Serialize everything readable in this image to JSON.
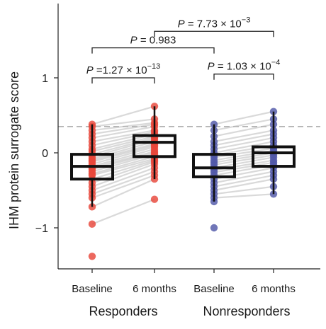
{
  "chart_data": {
    "type": "box",
    "ylabel": "IHM protein surrogate score",
    "ylim": [
      -1.5,
      1.85
    ],
    "yticks": [
      -1,
      0,
      1
    ],
    "threshold_line": 0.35,
    "categories": [
      "Baseline",
      "6 months",
      "Baseline",
      "6 months"
    ],
    "groups": [
      {
        "name": "Responders",
        "color": "#e8473a",
        "boxes": [
          {
            "label": "Baseline",
            "q1": -0.35,
            "median": -0.18,
            "q3": -0.02,
            "whisker_low": -0.72,
            "whisker_high": 0.38,
            "points": [
              0.38,
              0.35,
              0.3,
              0.25,
              0.2,
              0.15,
              0.1,
              0.05,
              0.02,
              -0.02,
              -0.05,
              -0.08,
              -0.1,
              -0.12,
              -0.15,
              -0.18,
              -0.2,
              -0.22,
              -0.25,
              -0.28,
              -0.3,
              -0.35,
              -0.4,
              -0.45,
              -0.5,
              -0.55,
              -0.6,
              -0.72,
              -0.95,
              -1.38
            ]
          },
          {
            "label": "6 months",
            "q1": -0.05,
            "median": 0.14,
            "q3": 0.23,
            "whisker_low": -0.35,
            "whisker_high": 0.62,
            "points": [
              0.62,
              0.45,
              0.4,
              0.38,
              0.35,
              0.3,
              0.28,
              0.25,
              0.22,
              0.2,
              0.18,
              0.15,
              0.12,
              0.1,
              0.08,
              0.05,
              0.02,
              0.0,
              -0.02,
              -0.05,
              -0.08,
              -0.1,
              -0.12,
              -0.15,
              -0.2,
              -0.25,
              -0.3,
              -0.35,
              -0.62
            ]
          }
        ]
      },
      {
        "name": "Nonresponders",
        "color": "#5058a8",
        "boxes": [
          {
            "label": "Baseline",
            "q1": -0.32,
            "median": -0.2,
            "q3": -0.02,
            "whisker_low": -0.65,
            "whisker_high": 0.38,
            "points": [
              0.38,
              0.3,
              0.22,
              0.15,
              0.1,
              0.05,
              0.0,
              -0.03,
              -0.06,
              -0.1,
              -0.13,
              -0.16,
              -0.2,
              -0.23,
              -0.26,
              -0.3,
              -0.35,
              -0.4,
              -0.45,
              -0.5,
              -0.55,
              -0.6,
              -0.65,
              -1.0
            ]
          },
          {
            "label": "6 months",
            "q1": -0.18,
            "median": 0.0,
            "q3": 0.08,
            "whisker_low": -0.55,
            "whisker_high": 0.55,
            "points": [
              0.55,
              0.45,
              0.38,
              0.3,
              0.25,
              0.2,
              0.15,
              0.1,
              0.06,
              0.03,
              0.0,
              -0.03,
              -0.06,
              -0.1,
              -0.13,
              -0.16,
              -0.2,
              -0.25,
              -0.3,
              -0.35,
              -0.45,
              -0.55
            ]
          }
        ]
      }
    ],
    "comparisons": [
      {
        "from": 0,
        "to": 1,
        "p_prefix": "P",
        "p_text": " =1.27 × 10",
        "p_exp": "−13",
        "level": 1.0
      },
      {
        "from": 0,
        "to": 2,
        "p_prefix": "P",
        "p_text": " = 0.983",
        "p_exp": "",
        "level": 1.4
      },
      {
        "from": 1,
        "to": 3,
        "p_prefix": "P",
        "p_text": " = 7.73 × 10",
        "p_exp": "−3",
        "level": 1.62
      },
      {
        "from": 2,
        "to": 3,
        "p_prefix": "P",
        "p_text": " = 1.03 × 10",
        "p_exp": "−4",
        "level": 1.05
      }
    ]
  }
}
